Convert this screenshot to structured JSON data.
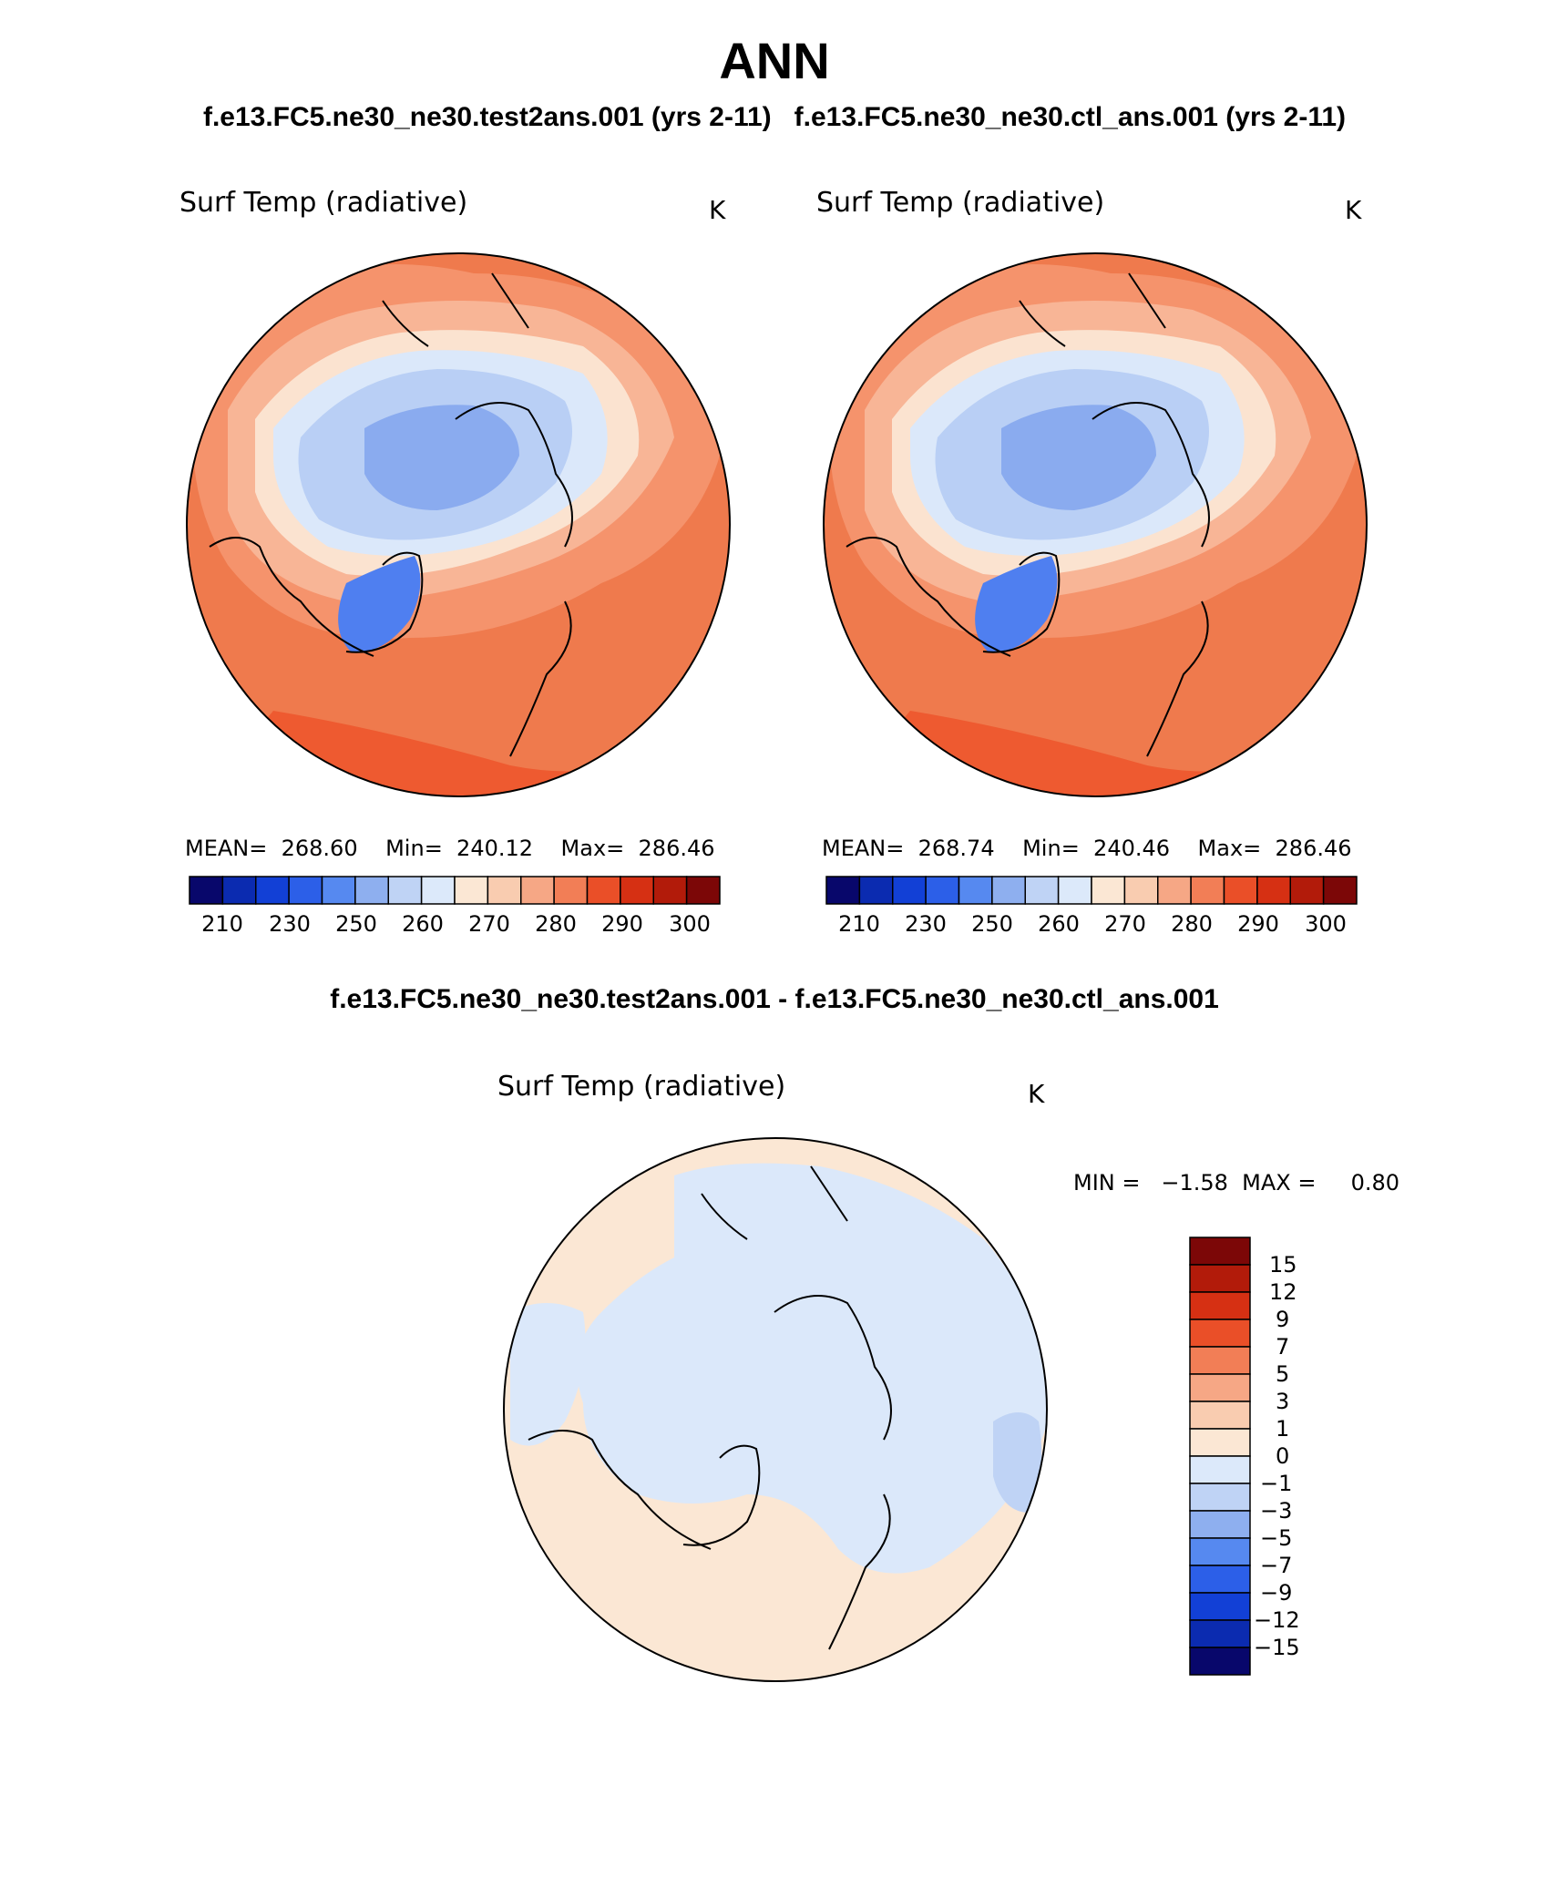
{
  "header": {
    "title": "ANN",
    "case_titles": "f.e13.FC5.ne30_ne30.test2ans.001 (yrs 2-11)   f.e13.FC5.ne30_ne30.ctl_ans.001 (yrs 2-11)"
  },
  "panels": [
    {
      "variable": "Surf Temp (radiative)",
      "units": "K",
      "stats": "MEAN=  268.60    Min=  240.12    Max=  286.46"
    },
    {
      "variable": "Surf Temp (radiative)",
      "units": "K",
      "stats": "MEAN=  268.74    Min=  240.46    Max=  286.46"
    }
  ],
  "colorbar": {
    "colors": [
      "#08076b",
      "#0b2bb0",
      "#1240d6",
      "#2c5fe8",
      "#5689f0",
      "#8eafef",
      "#bfd3f5",
      "#dce9fa",
      "#fbe7d4",
      "#f9ccb0",
      "#f6a785",
      "#f27e56",
      "#ea4f28",
      "#d63013",
      "#b21b0a",
      "#7c0707"
    ],
    "ticks": [
      "210",
      "230",
      "250",
      "260",
      "270",
      "280",
      "290",
      "300"
    ]
  },
  "difference": {
    "title": "f.e13.FC5.ne30_ne30.test2ans.001 - f.e13.FC5.ne30_ne30.ctl_ans.001",
    "variable": "Surf Temp (radiative)",
    "units": "K",
    "minmax": "MIN =   −1.58  MAX =     0.80",
    "colorbar_colors": [
      "#7c0707",
      "#b21b0a",
      "#d63013",
      "#ea4f28",
      "#f27e56",
      "#f6a785",
      "#f9ccb0",
      "#fbe7d4",
      "#dce9fa",
      "#bfd3f5",
      "#8eafef",
      "#5689f0",
      "#2c5fe8",
      "#1240d6",
      "#0b2bb0",
      "#08076b"
    ],
    "ticks": [
      "15",
      "12",
      "9",
      "7",
      "5",
      "3",
      "1",
      "0",
      "−1",
      "−3",
      "−5",
      "−7",
      "−9",
      "−12",
      "−15"
    ]
  },
  "colors": {
    "warm_dark": "#ea5a2f",
    "warm_mid": "#f27e56",
    "warm_light": "#f6a785",
    "warm_pale": "#f9ccb0",
    "neutral_warm": "#fbe7d4",
    "neutral_cool": "#dce9fa",
    "cool_light": "#bfd3f5",
    "cool_mid": "#8eafef",
    "cool_dark": "#5689f0"
  }
}
